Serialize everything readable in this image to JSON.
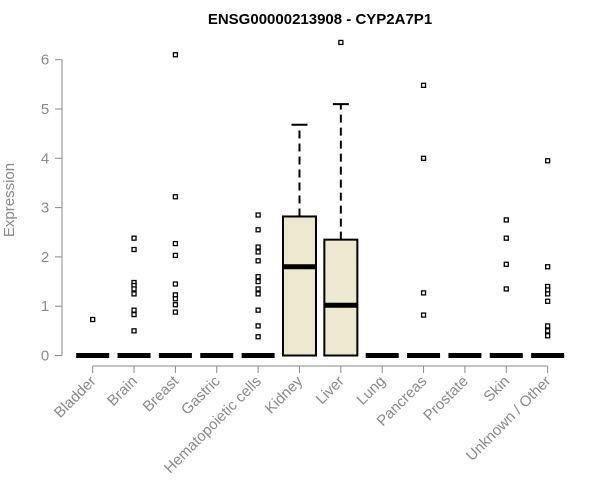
{
  "chart_data": {
    "type": "box",
    "title": "ENSG00000213908 - CYP2A7P1",
    "xlabel": "",
    "ylabel": "Expression",
    "ylim": [
      0,
      6.5
    ],
    "yticks": [
      0,
      1,
      2,
      3,
      4,
      5,
      6
    ],
    "grid": false,
    "box_fill": "#ede8d0",
    "categories": [
      "Bladder",
      "Brain",
      "Breast",
      "Gastric",
      "Hematopoietic cells",
      "Kidney",
      "Liver",
      "Lung",
      "Pancreas",
      "Prostate",
      "Skin",
      "Unknown / Other"
    ],
    "boxes": [
      {
        "category": "Bladder",
        "min": 0,
        "q1": 0,
        "median": 0,
        "q3": 0,
        "max": 0,
        "outliers": [
          0.73
        ]
      },
      {
        "category": "Brain",
        "min": 0,
        "q1": 0,
        "median": 0,
        "q3": 0,
        "max": 0,
        "outliers": [
          2.38,
          2.15,
          1.48,
          1.42,
          1.35,
          1.25,
          0.92,
          0.83,
          0.5
        ]
      },
      {
        "category": "Breast",
        "min": 0,
        "q1": 0,
        "median": 0,
        "q3": 0,
        "max": 0,
        "outliers": [
          6.1,
          3.22,
          2.27,
          2.03,
          1.45,
          1.23,
          1.15,
          1.03,
          0.88
        ]
      },
      {
        "category": "Gastric",
        "min": 0,
        "q1": 0,
        "median": 0,
        "q3": 0,
        "max": 0,
        "outliers": []
      },
      {
        "category": "Hematopoietic cells",
        "min": 0,
        "q1": 0,
        "median": 0,
        "q3": 0,
        "max": 0,
        "outliers": [
          2.85,
          2.55,
          2.2,
          2.1,
          1.92,
          1.6,
          1.5,
          1.35,
          1.25,
          0.92,
          0.6,
          0.38
        ]
      },
      {
        "category": "Kidney",
        "min": 0,
        "q1": 0,
        "median": 1.8,
        "q3": 2.82,
        "max": 4.68,
        "outliers": []
      },
      {
        "category": "Liver",
        "min": 0,
        "q1": 0,
        "median": 1.02,
        "q3": 2.35,
        "max": 5.1,
        "outliers": [
          6.35
        ]
      },
      {
        "category": "Lung",
        "min": 0,
        "q1": 0,
        "median": 0,
        "q3": 0,
        "max": 0,
        "outliers": []
      },
      {
        "category": "Pancreas",
        "min": 0,
        "q1": 0,
        "median": 0,
        "q3": 0,
        "max": 0,
        "outliers": [
          5.48,
          4.0,
          1.27,
          0.82
        ]
      },
      {
        "category": "Prostate",
        "min": 0,
        "q1": 0,
        "median": 0,
        "q3": 0,
        "max": 0,
        "outliers": []
      },
      {
        "category": "Skin",
        "min": 0,
        "q1": 0,
        "median": 0,
        "q3": 0,
        "max": 0,
        "outliers": [
          2.75,
          2.38,
          1.85,
          1.35
        ]
      },
      {
        "category": "Unknown / Other",
        "min": 0,
        "q1": 0,
        "median": 0,
        "q3": 0,
        "max": 0,
        "outliers": [
          3.95,
          1.8,
          1.4,
          1.33,
          1.25,
          1.1,
          0.6,
          0.5,
          0.4
        ]
      }
    ]
  }
}
